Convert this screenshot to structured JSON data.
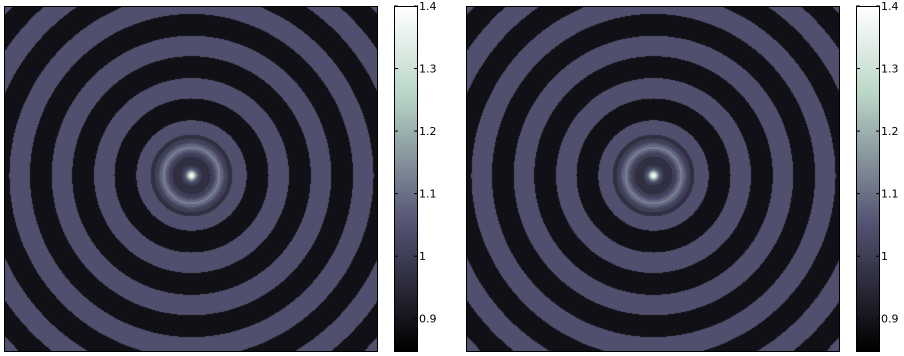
{
  "chart_data": [
    {
      "type": "heatmap",
      "description_type": "contour map of radially decaying ripple field",
      "colormap": "bone",
      "color_range": [
        0.85,
        1.4
      ],
      "colorbar_ticks": [
        {
          "value": 1.4,
          "label": "1.4"
        },
        {
          "value": 1.3,
          "label": "1.3"
        },
        {
          "value": 1.2,
          "label": "1.2"
        },
        {
          "value": 1.1,
          "label": "1.1"
        },
        {
          "value": 1.0,
          "label": "1"
        },
        {
          "value": 0.9,
          "label": "0.9"
        }
      ],
      "peak_value": 1.4,
      "ring_peak_value": 1.05,
      "ring_trough_value": 0.92,
      "ring_count": 11,
      "grid": false,
      "title": "",
      "xlabel": "",
      "ylabel": ""
    },
    {
      "type": "heatmap",
      "description_type": "contour map of radially decaying ripple field",
      "colormap": "bone",
      "color_range": [
        0.85,
        1.4
      ],
      "colorbar_ticks": [
        {
          "value": 1.4,
          "label": "1.4"
        },
        {
          "value": 1.3,
          "label": "1.3"
        },
        {
          "value": 1.2,
          "label": "1.2"
        },
        {
          "value": 1.1,
          "label": "1.1"
        },
        {
          "value": 1.0,
          "label": "1"
        },
        {
          "value": 0.9,
          "label": "0.9"
        }
      ],
      "peak_value": 1.4,
      "ring_peak_value": 1.05,
      "ring_trough_value": 0.92,
      "ring_count": 11,
      "grid": false,
      "title": "",
      "xlabel": "",
      "ylabel": ""
    }
  ]
}
